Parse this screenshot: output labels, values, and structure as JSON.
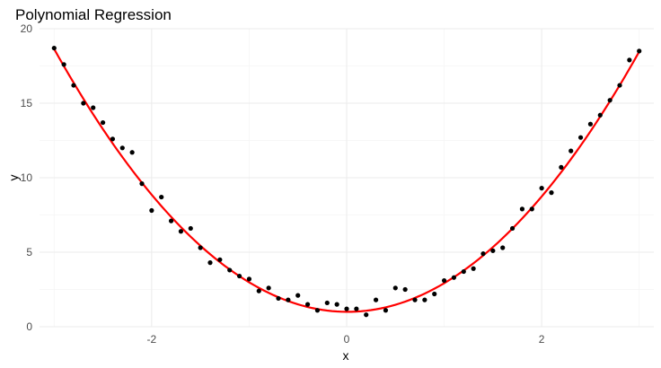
{
  "chart_data": {
    "type": "scatter",
    "title": "Polynomial Regression",
    "xlabel": "x",
    "ylabel": "y",
    "xlim": [
      -3.15,
      3.15
    ],
    "ylim": [
      0,
      20
    ],
    "xticks": [
      -2,
      0,
      2
    ],
    "xtick_labels": [
      "-2",
      "0",
      "2"
    ],
    "yticks": [
      0,
      5,
      10,
      15,
      20
    ],
    "ytick_labels": [
      "0",
      "5",
      "10",
      "15",
      "20"
    ],
    "grid": true,
    "legend": "none",
    "points": {
      "color": "#000000",
      "x": [
        -3.0,
        -2.9,
        -2.8,
        -2.7,
        -2.6,
        -2.5,
        -2.4,
        -2.3,
        -2.2,
        -2.1,
        -2.0,
        -1.9,
        -1.8,
        -1.7,
        -1.6,
        -1.5,
        -1.4,
        -1.3,
        -1.2,
        -1.1,
        -1.0,
        -0.9,
        -0.8,
        -0.7,
        -0.6,
        -0.5,
        -0.4,
        -0.3,
        -0.2,
        -0.1,
        0.0,
        0.1,
        0.2,
        0.3,
        0.4,
        0.5,
        0.6,
        0.7,
        0.8,
        0.9,
        1.0,
        1.1,
        1.2,
        1.3,
        1.4,
        1.5,
        1.6,
        1.7,
        1.8,
        1.9,
        2.0,
        2.1,
        2.2,
        2.3,
        2.4,
        2.5,
        2.6,
        2.7,
        2.8,
        2.9,
        3.0
      ],
      "y": [
        18.7,
        17.6,
        16.2,
        15.0,
        14.7,
        13.7,
        12.6,
        12.0,
        11.7,
        9.6,
        7.8,
        8.7,
        7.1,
        6.4,
        6.6,
        5.3,
        4.3,
        4.5,
        3.8,
        3.4,
        3.2,
        2.4,
        2.6,
        1.9,
        1.8,
        2.1,
        1.5,
        1.1,
        1.6,
        1.5,
        1.2,
        1.2,
        0.8,
        1.8,
        1.1,
        2.6,
        2.5,
        1.8,
        1.8,
        2.2,
        3.1,
        3.3,
        3.7,
        3.9,
        4.9,
        5.1,
        5.3,
        6.6,
        7.9,
        7.9,
        9.3,
        9.0,
        10.7,
        11.8,
        12.7,
        13.6,
        14.2,
        15.2,
        16.2,
        17.9,
        18.5
      ]
    },
    "fit": {
      "type": "polynomial",
      "degree": 2,
      "color": "#ff0000",
      "coefficients": {
        "a": 1.95,
        "b": -0.03,
        "c": 1.0
      }
    }
  }
}
